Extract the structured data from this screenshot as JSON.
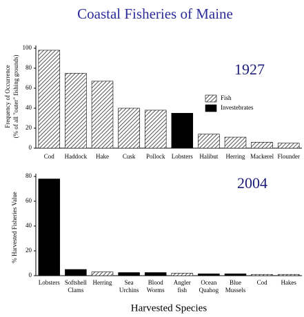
{
  "chart_data": [
    {
      "type": "bar",
      "title": "Coastal Fisheries of Maine",
      "annotation": "1927",
      "ylabel": [
        "Frequency of Occurrence",
        "(% of all \"outer\" fishing grounds)"
      ],
      "categories": [
        "Cod",
        "Haddock",
        "Hake",
        "Cusk",
        "Pollock",
        "Lobsters",
        "Halibut",
        "Herring",
        "Mackerel",
        "Flounder"
      ],
      "values": [
        98,
        75,
        67,
        40,
        38,
        35,
        14,
        11,
        6,
        5
      ],
      "colors": [
        "#b0b0b0",
        "#b0b0b0",
        "#b0b0b0",
        "#b0b0b0",
        "#b0b0b0",
        "#000000",
        "#b0b0b0",
        "#b0b0b0",
        "#b0b0b0",
        "#b0b0b0"
      ],
      "legend": [
        {
          "name": "Fish",
          "color": "#b0b0b0",
          "hatch": true
        },
        {
          "name": "Investebrates",
          "color": "#000000"
        }
      ],
      "ylim": [
        0,
        100
      ],
      "yticks": [
        0,
        20,
        40,
        60,
        80,
        100
      ]
    },
    {
      "type": "bar",
      "annotation": "2004",
      "xlabel": "Harvested Species",
      "ylabel": [
        "% Harvested Fisheries Value"
      ],
      "categories": [
        "Lobsters",
        "Softshell Clams",
        "Herring",
        "Sea Urchins",
        "Blood Worms",
        "Angler fish",
        "Ocean Quahog",
        "Blue Mussels",
        "Cod",
        "Hakes"
      ],
      "values": [
        78,
        5,
        3,
        2.5,
        2.5,
        2,
        1.5,
        1.5,
        1,
        1
      ],
      "colors": [
        "#000000",
        "#000000",
        "#b0b0b0",
        "#000000",
        "#000000",
        "#b0b0b0",
        "#000000",
        "#000000",
        "#b0b0b0",
        "#b0b0b0"
      ],
      "hatch_color": "#b0b0b0",
      "ylim": [
        0,
        80
      ],
      "yticks": [
        0,
        20,
        40,
        60,
        80
      ]
    }
  ]
}
